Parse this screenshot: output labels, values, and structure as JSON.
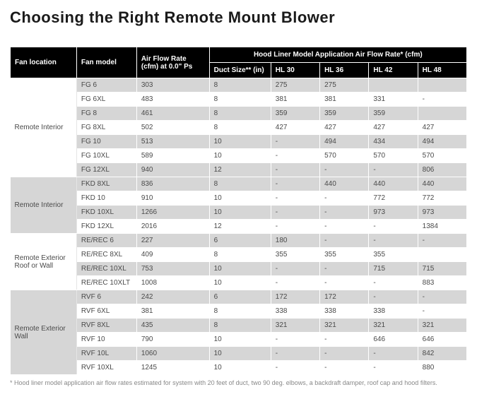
{
  "title": "Choosing the Right Remote Mount Blower",
  "headers": {
    "fan_location": "Fan location",
    "fan_model": "Fan model",
    "afr": "Air Flow Rate (cfm) at 0.0\" Ps",
    "hood_span": "Hood Liner Model Application Air Flow Rate* (cfm)",
    "duct": "Duct Size** (in)",
    "hl30": "HL 30",
    "hl36": "HL 36",
    "hl42": "HL 42",
    "hl48": "HL 48"
  },
  "groups": [
    {
      "label": "Remote Interior",
      "alt_bg": "#ffffff",
      "rows": [
        {
          "model": "FG 6",
          "afr": "303",
          "duct": "8",
          "hl30": "275",
          "hl36": "275",
          "hl42": "",
          "hl48": ""
        },
        {
          "model": "FG 6XL",
          "afr": "483",
          "duct": "8",
          "hl30": "381",
          "hl36": "381",
          "hl42": "331",
          "hl48": "-"
        },
        {
          "model": "FG 8",
          "afr": "461",
          "duct": "8",
          "hl30": "359",
          "hl36": "359",
          "hl42": "359",
          "hl48": ""
        },
        {
          "model": "FG 8XL",
          "afr": "502",
          "duct": "8",
          "hl30": "427",
          "hl36": "427",
          "hl42": "427",
          "hl48": "427"
        },
        {
          "model": "FG 10",
          "afr": "513",
          "duct": "10",
          "hl30": "-",
          "hl36": "494",
          "hl42": "434",
          "hl48": "494"
        },
        {
          "model": "FG 10XL",
          "afr": "589",
          "duct": "10",
          "hl30": "-",
          "hl36": "570",
          "hl42": "570",
          "hl48": "570"
        },
        {
          "model": "FG 12XL",
          "afr": "940",
          "duct": "12",
          "hl30": "-",
          "hl36": "-",
          "hl42": "-",
          "hl48": "806"
        }
      ]
    },
    {
      "label": "Remote Interior",
      "alt_bg": "#d6d6d6",
      "rows": [
        {
          "model": "FKD 8XL",
          "afr": "836",
          "duct": "8",
          "hl30": "-",
          "hl36": "440",
          "hl42": "440",
          "hl48": "440"
        },
        {
          "model": "FKD 10",
          "afr": "910",
          "duct": "10",
          "hl30": "-",
          "hl36": "-",
          "hl42": "772",
          "hl48": "772"
        },
        {
          "model": "FKD 10XL",
          "afr": "1266",
          "duct": "10",
          "hl30": "-",
          "hl36": "-",
          "hl42": "973",
          "hl48": "973"
        },
        {
          "model": "FKD 12XL",
          "afr": "2016",
          "duct": "12",
          "hl30": "-",
          "hl36": "-",
          "hl42": "-",
          "hl48": "1384"
        }
      ]
    },
    {
      "label": "Remote Exterior Roof or Wall",
      "alt_bg": "#ffffff",
      "rows": [
        {
          "model": "RE/REC 6",
          "afr": "227",
          "duct": "6",
          "hl30": "180",
          "hl36": "-",
          "hl42": "-",
          "hl48": "-"
        },
        {
          "model": "RE/REC 8XL",
          "afr": "409",
          "duct": "8",
          "hl30": "355",
          "hl36": "355",
          "hl42": "355",
          "hl48": ""
        },
        {
          "model": "RE/REC 10XL",
          "afr": "753",
          "duct": "10",
          "hl30": "-",
          "hl36": "-",
          "hl42": "715",
          "hl48": "715"
        },
        {
          "model": "RE/REC 10XLT",
          "afr": "1008",
          "duct": "10",
          "hl30": "-",
          "hl36": "-",
          "hl42": "-",
          "hl48": "883"
        }
      ]
    },
    {
      "label": "Remote Exterior Wall",
      "alt_bg": "#d6d6d6",
      "rows": [
        {
          "model": "RVF 6",
          "afr": "242",
          "duct": "6",
          "hl30": "172",
          "hl36": "172",
          "hl42": "-",
          "hl48": "-"
        },
        {
          "model": "RVF 6XL",
          "afr": "381",
          "duct": "8",
          "hl30": "338",
          "hl36": "338",
          "hl42": "338",
          "hl48": "-"
        },
        {
          "model": "RVF 8XL",
          "afr": "435",
          "duct": "8",
          "hl30": "321",
          "hl36": "321",
          "hl42": "321",
          "hl48": "321"
        },
        {
          "model": "RVF 10",
          "afr": "790",
          "duct": "10",
          "hl30": "-",
          "hl36": "-",
          "hl42": "646",
          "hl48": "646"
        },
        {
          "model": "RVF 10L",
          "afr": "1060",
          "duct": "10",
          "hl30": "-",
          "hl36": "-",
          "hl42": "-",
          "hl48": "842"
        },
        {
          "model": "RVF 10XL",
          "afr": "1245",
          "duct": "10",
          "hl30": "-",
          "hl36": "-",
          "hl42": "-",
          "hl48": "880"
        }
      ]
    }
  ],
  "footnote": "*   Hood liner model application air flow rates estimated for system with 20 feet of duct, two 90 deg. elbows, a backdraft damper, roof cap and hood filters.",
  "colors": {
    "header_bg": "#000000",
    "header_fg": "#ffffff",
    "row_even_bg": "#ffffff",
    "row_odd_bg": "#d6d6d6",
    "text": "#4a4a4a",
    "footnote": "#888888"
  }
}
